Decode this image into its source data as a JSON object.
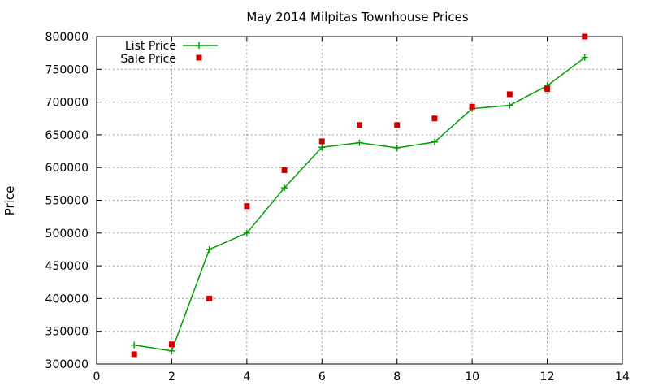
{
  "chart_data": {
    "type": "line",
    "title": "May 2014 Milpitas Townhouse Prices",
    "xlabel": "",
    "ylabel": "Price",
    "xlim": [
      0,
      14
    ],
    "ylim": [
      300000,
      800000
    ],
    "xticks": [
      0,
      2,
      4,
      6,
      8,
      10,
      12,
      14
    ],
    "yticks": [
      300000,
      350000,
      400000,
      450000,
      500000,
      550000,
      600000,
      650000,
      700000,
      750000,
      800000
    ],
    "grid": true,
    "legend_position": "top-left",
    "series": [
      {
        "name": "List Price",
        "style": "line+cross",
        "color": "#00a000",
        "x": [
          1,
          2,
          3,
          4,
          5,
          6,
          7,
          8,
          9,
          10,
          11,
          12,
          13
        ],
        "y": [
          329000,
          320000,
          475000,
          500000,
          569000,
          631000,
          638000,
          630000,
          639000,
          690000,
          695000,
          725000,
          768000
        ]
      },
      {
        "name": "Sale Price",
        "style": "square",
        "color": "#cc0000",
        "x": [
          1,
          2,
          3,
          4,
          5,
          6,
          7,
          8,
          9,
          10,
          11,
          12,
          13
        ],
        "y": [
          315000,
          330000,
          400000,
          541000,
          596000,
          640000,
          665000,
          665000,
          675000,
          693000,
          712000,
          720000,
          800000
        ]
      }
    ]
  }
}
